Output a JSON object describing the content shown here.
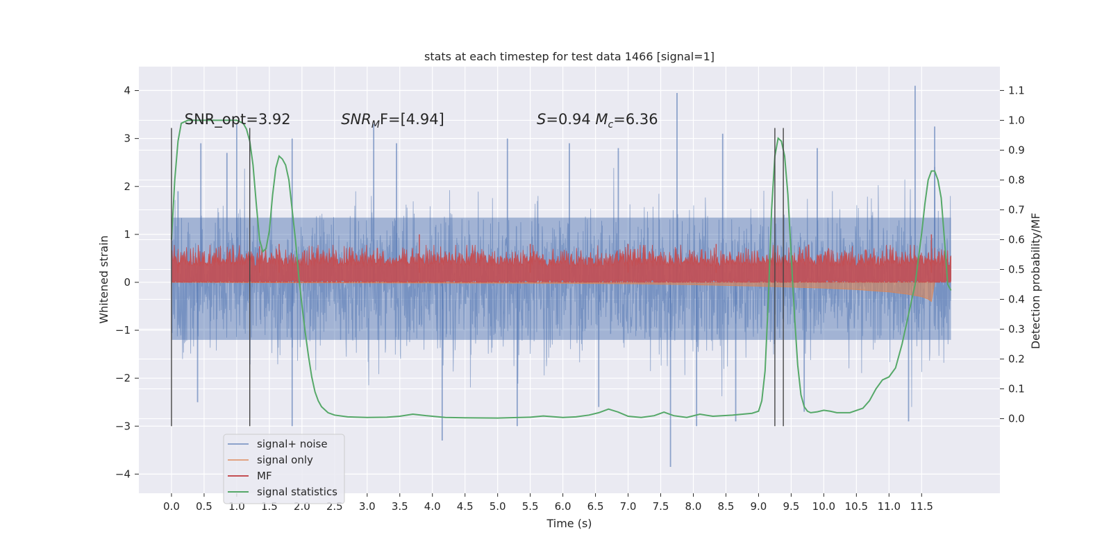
{
  "chart_data": {
    "type": "line",
    "title": "stats at each timestep for test data 1466 [signal=1]",
    "xlabel": "Time (s)",
    "ylabel": "Whitened strain",
    "y2label": "Detection probability/MF",
    "xlim": [
      -0.5,
      12.7
    ],
    "ylim": [
      -4.4,
      4.5
    ],
    "y2lim": [
      -0.25,
      1.18
    ],
    "xticks": [
      0.0,
      0.5,
      1.0,
      1.5,
      2.0,
      2.5,
      3.0,
      3.5,
      4.0,
      4.5,
      5.0,
      5.5,
      6.0,
      6.5,
      7.0,
      7.5,
      8.0,
      8.5,
      9.0,
      9.5,
      10.0,
      10.5,
      11.0,
      11.5
    ],
    "xtick_labels": [
      "0.0",
      "0.5",
      "1.0",
      "1.5",
      "2.0",
      "2.5",
      "3.0",
      "3.5",
      "4.0",
      "4.5",
      "5.0",
      "5.5",
      "6.0",
      "6.5",
      "7.0",
      "7.5",
      "8.0",
      "8.5",
      "9.0",
      "9.5",
      "10.0",
      "10.5",
      "11.0",
      "11.5"
    ],
    "yticks": [
      -4,
      -3,
      -2,
      -1,
      0,
      1,
      2,
      3,
      4
    ],
    "ytick_labels": [
      "−4",
      "−3",
      "−2",
      "−1",
      "0",
      "1",
      "2",
      "3",
      "4"
    ],
    "y2ticks": [
      0.0,
      0.1,
      0.2,
      0.3,
      0.4,
      0.5,
      0.6,
      0.7,
      0.8,
      0.9,
      1.0,
      1.1
    ],
    "y2tick_labels": [
      "0.0",
      "0.1",
      "0.2",
      "0.3",
      "0.4",
      "0.5",
      "0.6",
      "0.7",
      "0.8",
      "0.9",
      "1.0",
      "1.1"
    ],
    "grid": true,
    "legend_position": "lower-left",
    "annotations": [
      {
        "id": "snr-opt",
        "text": "SNR_opt=3.92"
      },
      {
        "id": "snr-mf",
        "text": "SNR",
        "sub": "M",
        "tail": "F=[4.94]"
      },
      {
        "id": "s-mc",
        "text": "S",
        "tail": "=0.94   ",
        "text2": "M",
        "sub2": "c",
        "tail2": "=6.36"
      }
    ],
    "annotation_x": [
      0.2,
      2.6,
      5.6
    ],
    "annotation_y": 3.3,
    "vertical_markers_x": [
      0.0,
      1.2,
      9.25,
      9.38
    ],
    "vertical_marker_range": [
      -3.0,
      3.22
    ],
    "series": [
      {
        "name": "signal+ noise",
        "color": "#4C72B0",
        "alpha": 0.5,
        "x_range": [
          0.0,
          11.95
        ],
        "noise_sigma": 0.72,
        "upper_peaks": [
          [
            0.1,
            1.9
          ],
          [
            0.45,
            2.9
          ],
          [
            0.85,
            2.7
          ],
          [
            1.0,
            3.3
          ],
          [
            1.85,
            3.0
          ],
          [
            3.1,
            3.3
          ],
          [
            3.45,
            2.9
          ],
          [
            5.15,
            3.0
          ],
          [
            6.1,
            2.9
          ],
          [
            6.85,
            2.8
          ],
          [
            7.75,
            3.95
          ],
          [
            8.45,
            3.1
          ],
          [
            9.9,
            2.8
          ],
          [
            11.4,
            4.1
          ],
          [
            11.7,
            3.25
          ]
        ],
        "lower_peaks": [
          [
            0.4,
            -2.5
          ],
          [
            1.85,
            -3.0
          ],
          [
            4.15,
            -3.3
          ],
          [
            5.3,
            -3.0
          ],
          [
            6.55,
            -2.6
          ],
          [
            7.65,
            -3.85
          ],
          [
            8.05,
            -3.0
          ],
          [
            8.65,
            -2.9
          ],
          [
            9.7,
            -2.7
          ],
          [
            11.3,
            -2.9
          ]
        ]
      },
      {
        "name": "signal only",
        "color": "#DD8452",
        "alpha": 0.6,
        "x": [
          0.0,
          2.0,
          4.0,
          6.0,
          7.0,
          8.0,
          9.0,
          10.0,
          10.5,
          11.0,
          11.3,
          11.5,
          11.6,
          11.65,
          11.7
        ],
        "y": [
          0.0,
          -0.01,
          -0.015,
          -0.02,
          -0.03,
          -0.05,
          -0.08,
          -0.12,
          -0.15,
          -0.2,
          -0.25,
          -0.3,
          -0.35,
          -0.4,
          0.0
        ]
      },
      {
        "name": "MF",
        "color": "#C44E52",
        "x_range": [
          0.0,
          11.95
        ],
        "base": 0.25,
        "spread": 0.35,
        "peaks": [
          [
            0.1,
            0.6
          ],
          [
            1.35,
            0.75
          ],
          [
            1.65,
            0.8
          ],
          [
            3.8,
            1.0
          ],
          [
            5.5,
            0.8
          ],
          [
            7.0,
            0.8
          ],
          [
            8.35,
            0.8
          ],
          [
            11.65,
            1.0
          ]
        ]
      },
      {
        "name": "signal statistics",
        "color": "#55A868",
        "axis": "right",
        "x": [
          0.0,
          0.05,
          0.1,
          0.15,
          0.25,
          0.4,
          0.6,
          0.8,
          1.0,
          1.1,
          1.15,
          1.2,
          1.25,
          1.3,
          1.35,
          1.4,
          1.45,
          1.5,
          1.55,
          1.6,
          1.65,
          1.7,
          1.75,
          1.8,
          1.85,
          1.9,
          1.95,
          2.0,
          2.05,
          2.1,
          2.15,
          2.2,
          2.25,
          2.3,
          2.4,
          2.5,
          2.7,
          3.0,
          3.3,
          3.5,
          3.7,
          3.9,
          4.2,
          4.5,
          5.0,
          5.5,
          5.7,
          6.0,
          6.2,
          6.4,
          6.55,
          6.7,
          6.85,
          7.0,
          7.2,
          7.4,
          7.55,
          7.7,
          7.9,
          8.1,
          8.3,
          8.6,
          8.9,
          9.0,
          9.05,
          9.1,
          9.15,
          9.2,
          9.25,
          9.3,
          9.35,
          9.4,
          9.45,
          9.5,
          9.55,
          9.6,
          9.65,
          9.7,
          9.75,
          9.8,
          9.9,
          10.0,
          10.1,
          10.2,
          10.4,
          10.6,
          10.7,
          10.8,
          10.9,
          11.0,
          11.1,
          11.2,
          11.3,
          11.4,
          11.5,
          11.55,
          11.6,
          11.65,
          11.7,
          11.75,
          11.8,
          11.85,
          11.9,
          11.95
        ],
        "y": [
          0.6,
          0.8,
          0.93,
          0.99,
          1.0,
          1.0,
          1.0,
          1.0,
          1.0,
          0.99,
          0.97,
          0.93,
          0.85,
          0.72,
          0.6,
          0.56,
          0.57,
          0.63,
          0.75,
          0.84,
          0.88,
          0.87,
          0.85,
          0.8,
          0.7,
          0.6,
          0.48,
          0.38,
          0.29,
          0.21,
          0.14,
          0.09,
          0.06,
          0.04,
          0.02,
          0.012,
          0.006,
          0.004,
          0.005,
          0.008,
          0.015,
          0.01,
          0.004,
          0.003,
          0.002,
          0.005,
          0.009,
          0.004,
          0.006,
          0.012,
          0.02,
          0.032,
          0.022,
          0.008,
          0.004,
          0.01,
          0.022,
          0.01,
          0.004,
          0.015,
          0.008,
          0.012,
          0.018,
          0.025,
          0.06,
          0.16,
          0.4,
          0.7,
          0.88,
          0.94,
          0.93,
          0.88,
          0.75,
          0.55,
          0.35,
          0.18,
          0.08,
          0.04,
          0.025,
          0.02,
          0.023,
          0.028,
          0.025,
          0.02,
          0.02,
          0.035,
          0.06,
          0.1,
          0.13,
          0.14,
          0.17,
          0.25,
          0.35,
          0.45,
          0.62,
          0.72,
          0.8,
          0.83,
          0.83,
          0.8,
          0.74,
          0.6,
          0.45,
          0.43
        ]
      }
    ]
  }
}
